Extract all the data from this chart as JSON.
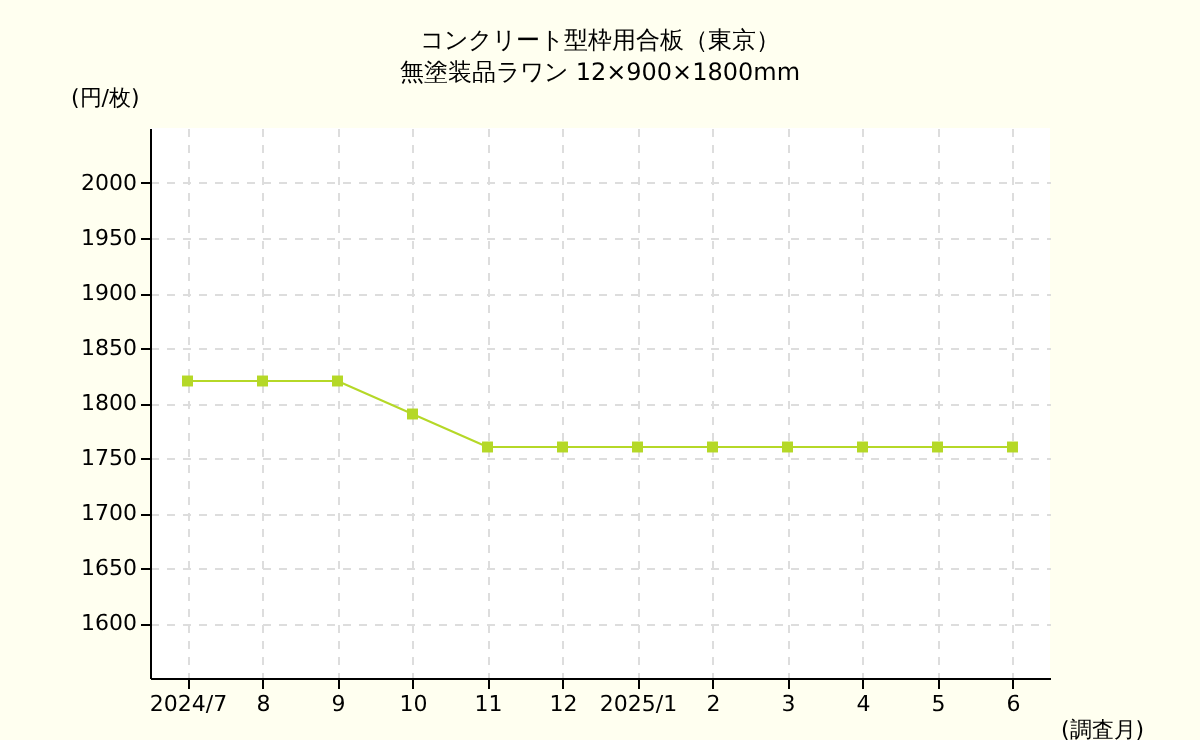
{
  "chart_data": {
    "type": "line",
    "title": "コンクリート型枠用合板（東京）",
    "subtitle": "無塗装品ラワン 12×900×1800mm",
    "ylabel": "(円/枚)",
    "xlabel": "(調査月)",
    "categories": [
      "2024/7",
      "8",
      "9",
      "10",
      "11",
      "12",
      "2025/1",
      "2",
      "3",
      "4",
      "5",
      "6"
    ],
    "series": [
      {
        "color": "#b5d827",
        "values": [
          1820,
          1820,
          1820,
          1790,
          1760,
          1760,
          1760,
          1760,
          1760,
          1760,
          1760,
          1760
        ]
      }
    ],
    "ylim": [
      1550,
      2050
    ],
    "yticks": [
      1600,
      1650,
      1700,
      1750,
      1800,
      1850,
      1900,
      1950,
      2000
    ],
    "grid": true,
    "marker": "square",
    "legend": false
  }
}
